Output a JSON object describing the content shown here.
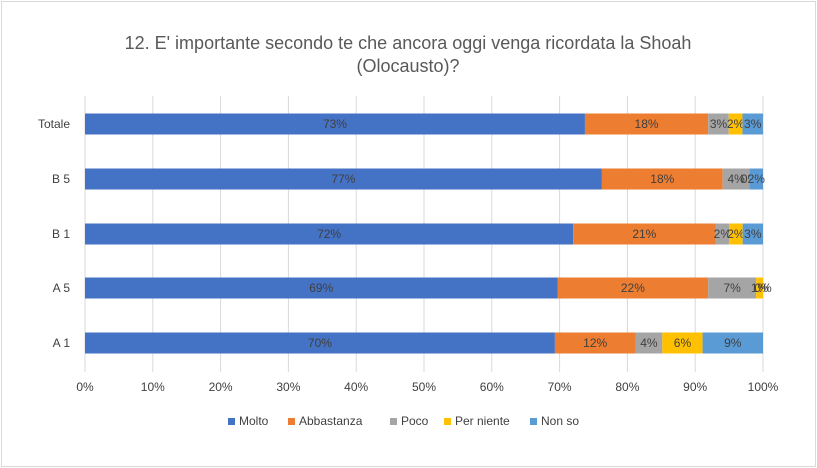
{
  "chart_data": {
    "type": "bar",
    "orientation": "horizontal",
    "stacked": "percent",
    "title": "12.  E' importante secondo te che ancora oggi venga ricordata la Shoah (Olocausto)?",
    "title_lines": [
      "12.  E' importante secondo te che ancora oggi venga ricordata la Shoah",
      "(Olocausto)?"
    ],
    "categories": [
      "Totale",
      "B 5",
      "B 1",
      "A 5",
      "A 1"
    ],
    "series": [
      {
        "name": "Molto",
        "color": "#4472C4",
        "values": [
          73,
          77,
          72,
          69,
          70
        ],
        "labels": [
          "73%",
          "77%",
          "72%",
          "69%",
          "70%"
        ]
      },
      {
        "name": "Abbastanza",
        "color": "#ED7D31",
        "values": [
          18,
          18,
          21,
          22,
          12
        ],
        "labels": [
          "18%",
          "18%",
          "21%",
          "22%",
          "12%"
        ]
      },
      {
        "name": "Poco",
        "color": "#A5A5A5",
        "values": [
          3,
          4,
          2,
          7,
          4
        ],
        "labels": [
          "3%",
          "4%",
          "2%",
          "7%",
          "4%"
        ]
      },
      {
        "name": "Per niente",
        "color": "#FFC000",
        "values": [
          2,
          0,
          2,
          1,
          6
        ],
        "labels": [
          "2%",
          "0%",
          "2%",
          "1%",
          "6%"
        ]
      },
      {
        "name": "Non so",
        "color": "#5B9BD5",
        "values": [
          3,
          2,
          3,
          0,
          9
        ],
        "labels": [
          "3%",
          "2%",
          "3%",
          "0%",
          "9%"
        ]
      }
    ],
    "xlim": [
      0,
      100
    ],
    "x_ticks": [
      "0%",
      "10%",
      "20%",
      "30%",
      "40%",
      "50%",
      "60%",
      "70%",
      "80%",
      "90%",
      "100%"
    ],
    "grid": true,
    "legend_position": "bottom"
  }
}
